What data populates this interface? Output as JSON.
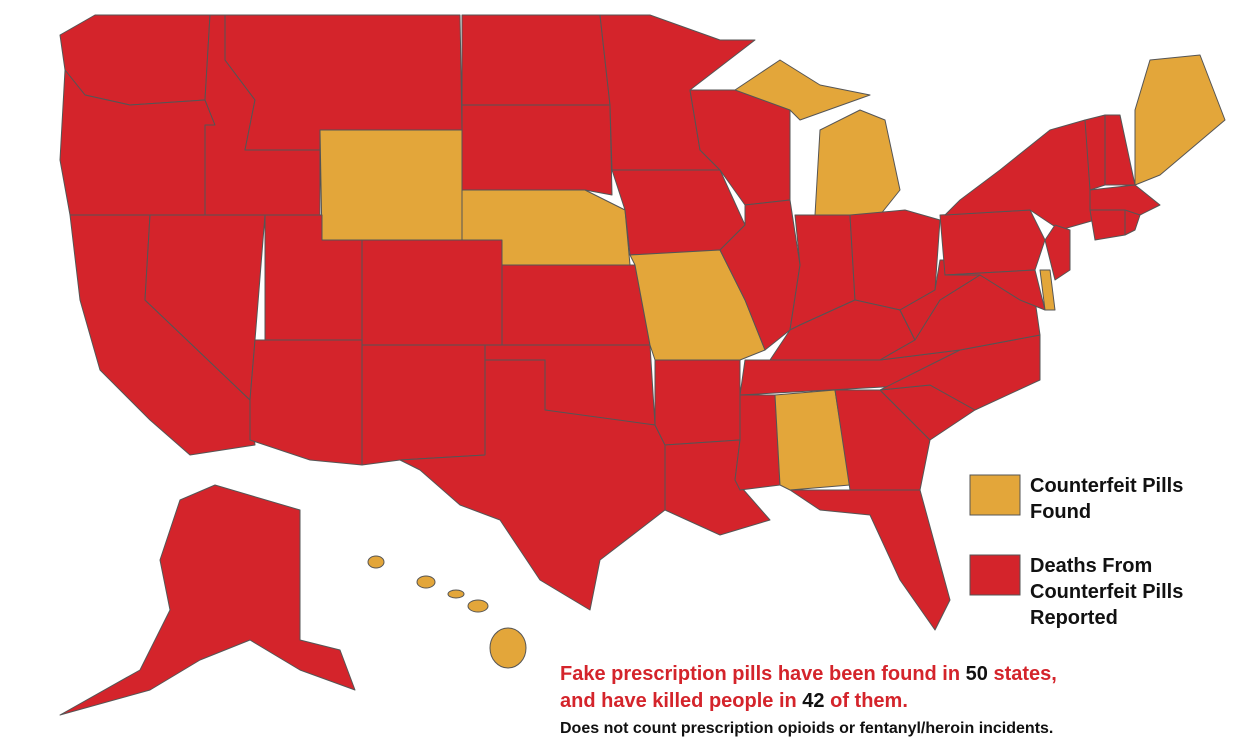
{
  "legend": [
    {
      "label_lines": [
        "Counterfeit Pills",
        "Found"
      ],
      "color": "#e3a63a"
    },
    {
      "label_lines": [
        "Deaths From",
        "Counterfeit Pills",
        "Reported"
      ],
      "color": "#d4242b"
    }
  ],
  "caption": {
    "line1": [
      "Fake prescription pills have been found in ",
      "50",
      " states,"
    ],
    "line2": [
      "and have killed people in ",
      "42",
      " of them."
    ],
    "note": "Does not count prescription opioids or fentanyl/heroin incidents."
  }
}
